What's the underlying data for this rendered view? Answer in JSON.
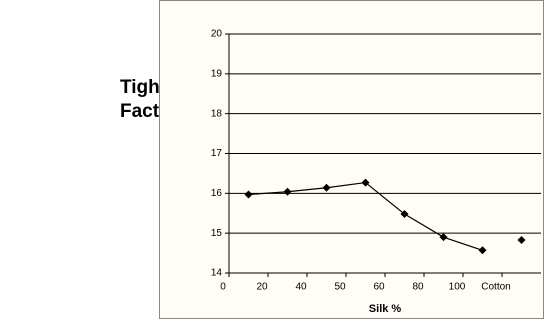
{
  "chart_data": {
    "type": "line",
    "y_label": "Tightness Factor",
    "x_label": "Silk %",
    "categories": [
      "0",
      "20",
      "40",
      "50",
      "60",
      "80",
      "100",
      "Cotton"
    ],
    "series": [
      {
        "color": "#000000",
        "values": [
          15.97,
          16.04,
          16.14,
          16.27,
          15.48,
          14.9,
          14.57,
          null
        ]
      },
      {
        "color": "#000000",
        "values": [
          null,
          null,
          null,
          null,
          null,
          null,
          null,
          14.83
        ]
      }
    ],
    "ylim": [
      14,
      20
    ],
    "yticks": [
      14,
      15,
      16,
      17,
      18,
      19,
      20
    ],
    "grid": true
  }
}
